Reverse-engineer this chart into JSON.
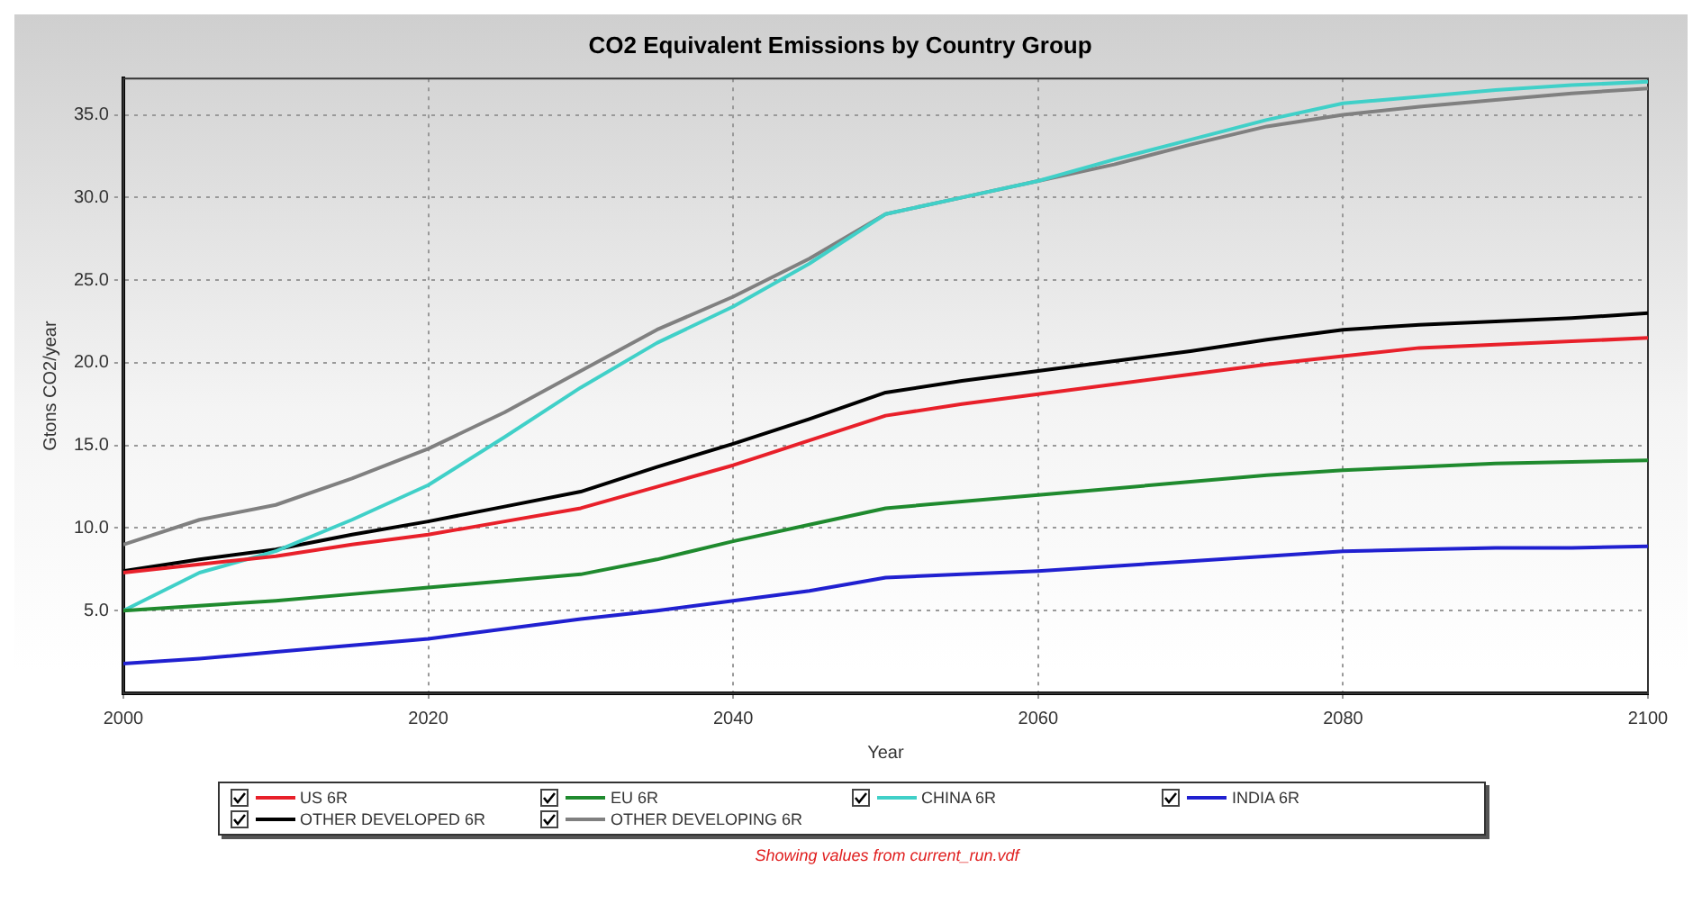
{
  "chart_data": {
    "type": "line",
    "title": "CO2 Equivalent Emissions by Country Group",
    "xlabel": "Year",
    "ylabel": "Gtons CO2/year",
    "x": [
      2000,
      2005,
      2010,
      2015,
      2020,
      2025,
      2030,
      2035,
      2040,
      2045,
      2050,
      2055,
      2060,
      2065,
      2070,
      2075,
      2080,
      2085,
      2090,
      2095,
      2100
    ],
    "series": [
      {
        "name": "US 6R",
        "color": "#e8202a",
        "values": [
          7.3,
          7.8,
          8.3,
          9.0,
          9.6,
          10.4,
          11.2,
          12.5,
          13.8,
          15.3,
          16.8,
          17.5,
          18.1,
          18.7,
          19.3,
          19.9,
          20.4,
          20.9,
          21.1,
          21.3,
          21.5
        ]
      },
      {
        "name": "EU 6R",
        "color": "#1f8a2e",
        "values": [
          5.0,
          5.3,
          5.6,
          6.0,
          6.4,
          6.8,
          7.2,
          8.1,
          9.2,
          10.2,
          11.2,
          11.6,
          12.0,
          12.4,
          12.8,
          13.2,
          13.5,
          13.7,
          13.9,
          14.0,
          14.1
        ]
      },
      {
        "name": "CHINA 6R",
        "color": "#40d0c8",
        "values": [
          5.0,
          7.3,
          8.6,
          10.5,
          12.6,
          15.5,
          18.5,
          21.2,
          23.4,
          26.0,
          29.0,
          30.0,
          31.0,
          32.3,
          33.5,
          34.7,
          35.7,
          36.1,
          36.5,
          36.8,
          37.0
        ]
      },
      {
        "name": "INDIA 6R",
        "color": "#2020d0",
        "values": [
          1.8,
          2.1,
          2.5,
          2.9,
          3.3,
          3.9,
          4.5,
          5.0,
          5.6,
          6.2,
          7.0,
          7.2,
          7.4,
          7.7,
          8.0,
          8.3,
          8.6,
          8.7,
          8.8,
          8.8,
          8.9
        ]
      },
      {
        "name": "OTHER DEVELOPED 6R",
        "color": "#000000",
        "values": [
          7.4,
          8.1,
          8.7,
          9.6,
          10.4,
          11.3,
          12.2,
          13.7,
          15.1,
          16.6,
          18.2,
          18.9,
          19.5,
          20.1,
          20.7,
          21.4,
          22.0,
          22.3,
          22.5,
          22.7,
          23.0
        ]
      },
      {
        "name": "OTHER DEVELOPING 6R",
        "color": "#808080",
        "values": [
          9.0,
          10.5,
          11.4,
          13.0,
          14.8,
          17.0,
          19.5,
          22.0,
          24.0,
          26.3,
          29.0,
          30.0,
          31.0,
          32.0,
          33.2,
          34.3,
          35.0,
          35.5,
          35.9,
          36.3,
          36.6
        ]
      }
    ],
    "xlim": [
      2000,
      2100
    ],
    "xticks": [
      2000,
      2020,
      2040,
      2060,
      2080,
      2100
    ],
    "ylim": [
      0,
      37.2
    ],
    "yticks": [
      {
        "value": 5,
        "label": "5.0"
      },
      {
        "value": 10,
        "label": "10.0"
      },
      {
        "value": 15,
        "label": "15.0"
      },
      {
        "value": 20,
        "label": "20.0"
      },
      {
        "value": 25,
        "label": "25.0"
      },
      {
        "value": 30,
        "label": "30.0"
      },
      {
        "value": 35,
        "label": "35.0"
      }
    ],
    "grid": true,
    "legend": "bottom",
    "marker": "none",
    "line_style": "solid",
    "annotations": [
      "Showing values from current_run.vdf"
    ]
  }
}
